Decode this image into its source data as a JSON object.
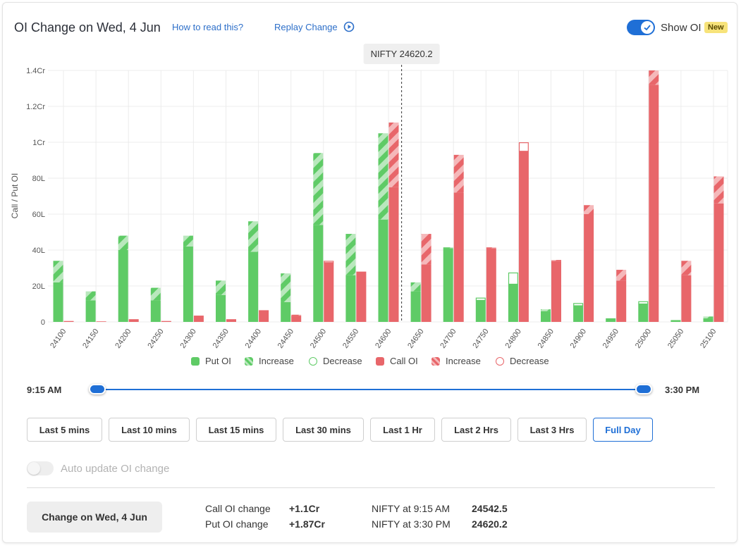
{
  "header": {
    "title": "OI Change on Wed, 4 Jun",
    "how_to_read": "How to read this?",
    "replay": "Replay Change",
    "show_oi": "Show OI",
    "new_badge": "New"
  },
  "chart_data": {
    "type": "bar",
    "ylabel": "Call / Put OI",
    "yticks": [
      "0",
      "20L",
      "40L",
      "60L",
      "80L",
      "1Cr",
      "1.2Cr",
      "1.4Cr"
    ],
    "ylim": [
      0,
      140
    ],
    "unit": "lakh",
    "marker": {
      "label": "NIFTY 24620.2",
      "x": 24620.2
    },
    "categories": [
      "24100",
      "24150",
      "24200",
      "24250",
      "24300",
      "24350",
      "24400",
      "24450",
      "24500",
      "24550",
      "24600",
      "24650",
      "24700",
      "24750",
      "24800",
      "24850",
      "24900",
      "24950",
      "25000",
      "25050",
      "25100"
    ],
    "series": [
      {
        "name": "Put OI",
        "base": [
          22,
          12,
          40,
          12,
          42,
          15,
          39,
          11,
          54,
          26,
          57,
          17,
          41,
          12,
          21,
          6,
          9,
          2,
          10,
          1,
          2
        ],
        "change": [
          12,
          5,
          8,
          7,
          6,
          8,
          17,
          16,
          40,
          23,
          48,
          5,
          0.5,
          1.5,
          6.5,
          1,
          1.5,
          0,
          1.5,
          0,
          1
        ],
        "change_type": [
          "inc",
          "inc",
          "inc",
          "inc",
          "inc",
          "inc",
          "inc",
          "inc",
          "inc",
          "inc",
          "inc",
          "inc",
          "inc",
          "dec",
          "dec",
          "inc",
          "dec",
          "inc",
          "dec",
          "inc",
          "inc"
        ]
      },
      {
        "name": "Call OI",
        "base": [
          0.5,
          0.3,
          1.5,
          0.5,
          3.5,
          1.5,
          6,
          3.5,
          33,
          28,
          75,
          32,
          72,
          41,
          95,
          34,
          60,
          23,
          132,
          26,
          66
        ],
        "change": [
          0,
          0,
          0,
          0,
          0,
          0,
          0.5,
          0.5,
          1,
          0,
          36,
          17,
          21,
          0.5,
          5,
          0.5,
          5,
          6,
          8,
          8,
          15
        ],
        "change_type": [
          "inc",
          "inc",
          "inc",
          "inc",
          "inc",
          "inc",
          "dec",
          "inc",
          "dec",
          "inc",
          "inc",
          "inc",
          "inc",
          "inc",
          "dec",
          "inc",
          "inc",
          "inc",
          "inc",
          "inc",
          "inc"
        ]
      }
    ],
    "legend": [
      {
        "name": "Put OI",
        "style": "put-solid"
      },
      {
        "name": "Increase",
        "style": "put-inc"
      },
      {
        "name": "Decrease",
        "style": "put-dec"
      },
      {
        "name": "Call OI",
        "style": "call-solid"
      },
      {
        "name": "Increase",
        "style": "call-inc"
      },
      {
        "name": "Decrease",
        "style": "call-dec"
      }
    ],
    "colors": {
      "put": "#5fcb66",
      "put_light": "#b9e8bd",
      "call": "#e8666a",
      "call_light": "#f5b8ba"
    }
  },
  "slider": {
    "start": "9:15 AM",
    "end": "3:30 PM"
  },
  "range_buttons": [
    "Last 5 mins",
    "Last 10 mins",
    "Last 15 mins",
    "Last 30 mins",
    "Last 1 Hr",
    "Last 2 Hrs",
    "Last 3 Hrs",
    "Full Day"
  ],
  "active_range": "Full Day",
  "auto_update": {
    "label": "Auto update OI change",
    "enabled": false
  },
  "summary": {
    "button": "Change on Wed, 4 Jun",
    "call_label": "Call OI change",
    "call_value": "+1.1Cr",
    "put_label": "Put OI change",
    "put_value": "+1.87Cr",
    "nifty_open_label": "NIFTY at 9:15 AM",
    "nifty_open_value": "24542.5",
    "nifty_close_label": "NIFTY at 3:30 PM",
    "nifty_close_value": "24620.2"
  }
}
